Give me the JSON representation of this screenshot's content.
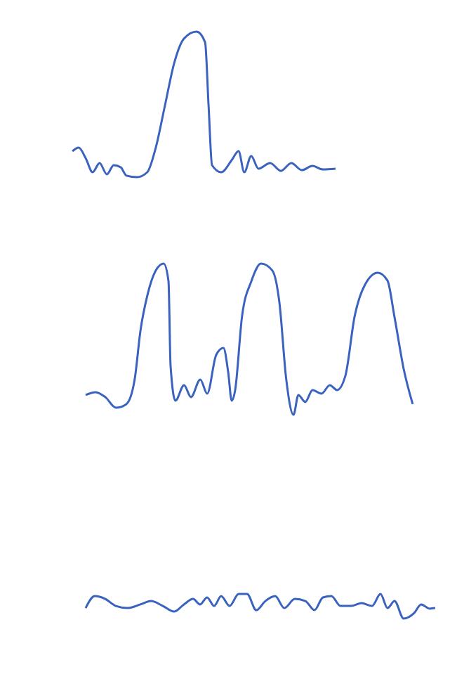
{
  "chart_data": [
    {
      "type": "line",
      "color": "#3a62bf",
      "xlim": [
        0,
        100
      ],
      "ylim": [
        0,
        100
      ],
      "tick_labels": false,
      "x": [
        0.7,
        2.7,
        4.9,
        7.1,
        9.3,
        11.6,
        13.8,
        16,
        17.8,
        21.1,
        24.4,
        27.1,
        30,
        32.9,
        36,
        40,
        42.7,
        43.8,
        44.9,
        47.8,
        51.1,
        53.3,
        55.1,
        57.3,
        59.6,
        63.3,
        66.7,
        70,
        73.3,
        76.7,
        80,
        84
      ],
      "values": [
        28.5,
        30.4,
        24.8,
        17.4,
        22.2,
        16.3,
        21.1,
        20,
        15.6,
        14.8,
        17.4,
        30.4,
        52.6,
        74.8,
        87.8,
        91.5,
        85.9,
        52.6,
        21.1,
        17.4,
        23.7,
        28.5,
        17.4,
        25.9,
        19.3,
        22.2,
        18.1,
        22.2,
        18.5,
        20.7,
        18.9,
        19.3
      ]
    },
    {
      "type": "line",
      "color": "#3a62bf",
      "xlim": [
        0,
        100
      ],
      "ylim": [
        0,
        100
      ],
      "tick_labels": false,
      "x": [
        0.8,
        3.7,
        6.5,
        9.6,
        12.6,
        15,
        16.7,
        18.7,
        21.1,
        23.4,
        24.8,
        25.4,
        26.8,
        29.3,
        31.3,
        34,
        36,
        38.6,
        40.7,
        42.1,
        43.1,
        44.1,
        46.1,
        48.8,
        51.6,
        54.9,
        56.9,
        58.9,
        61,
        62.4,
        64.4,
        66.5,
        69.1,
        71.5,
        73.6,
        76,
        78.7,
        81.7,
        85.4,
        88.2,
        90.2,
        92.9,
        95.5
      ],
      "values": [
        17.8,
        19.3,
        16.7,
        11.1,
        13,
        25.9,
        51.9,
        70.4,
        83.3,
        87,
        77.8,
        33.3,
        14.8,
        23,
        16.7,
        25.9,
        18.5,
        38.9,
        42.6,
        29.6,
        14.8,
        20.4,
        59.3,
        77.8,
        87,
        83.3,
        66.7,
        25.9,
        7.4,
        17.8,
        14.1,
        20.4,
        18.5,
        23,
        20.4,
        27.8,
        59.3,
        75.9,
        82.2,
        78.1,
        59.3,
        31.5,
        13
      ]
    },
    {
      "type": "line",
      "color": "#3a62bf",
      "xlim": [
        0,
        100
      ],
      "ylim": [
        0,
        100
      ],
      "tick_labels": false,
      "x": [
        0.4,
        3,
        6,
        9,
        12.4,
        16,
        19,
        22.4,
        25.6,
        28.4,
        31,
        33,
        35,
        37,
        39,
        41.4,
        44,
        46.4,
        49,
        51.6,
        54.4,
        57,
        60,
        63,
        65.6,
        68,
        70.4,
        73,
        76,
        79,
        82,
        84.4,
        86.4,
        88.4,
        91,
        94,
        96,
        98.4,
        100
      ],
      "values": [
        15.9,
        22.2,
        20.7,
        17,
        15.9,
        17.8,
        19.6,
        17,
        14.1,
        17.8,
        20.7,
        17.8,
        21.5,
        17,
        22.2,
        17,
        23.3,
        23.3,
        14.8,
        19.6,
        22.2,
        15.9,
        20.7,
        19.6,
        14.8,
        21.5,
        22.2,
        17,
        17,
        18.5,
        17,
        23.3,
        15.9,
        19.6,
        10.4,
        13.3,
        17.8,
        15.6,
        15.9
      ]
    }
  ]
}
